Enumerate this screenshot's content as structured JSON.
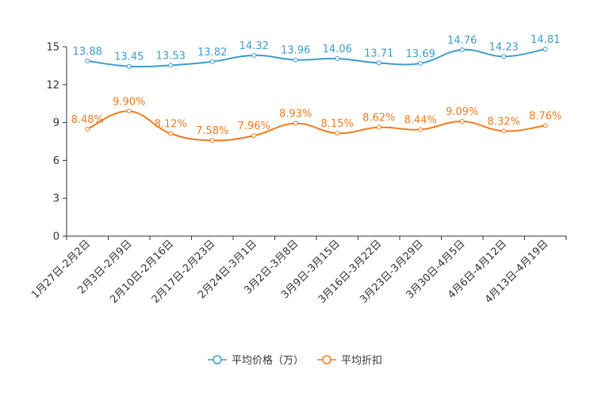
{
  "chart_data": {
    "type": "line",
    "title": "",
    "xlabel": "",
    "ylabel": "",
    "ylim": [
      0,
      15
    ],
    "yticks": [
      0,
      3,
      6,
      9,
      12,
      15
    ],
    "categories": [
      "1月27日-2月2日",
      "2月3日-2月9日",
      "2月10日-2月16日",
      "2月17日-2月23日",
      "2月24日-3月1日",
      "3月2日-3月8日",
      "3月9日-3月15日",
      "3月16日-3月22日",
      "3月23日-3月29日",
      "3月30日-4月5日",
      "4月6日-4月12日",
      "4月13日-4月19日"
    ],
    "series": [
      {
        "name": "平均价格（万）",
        "color": "#3d9ccb",
        "values": [
          13.88,
          13.45,
          13.53,
          13.82,
          14.32,
          13.96,
          14.06,
          13.71,
          13.69,
          14.76,
          14.23,
          14.81
        ],
        "labels": [
          "13.88",
          "13.45",
          "13.53",
          "13.82",
          "14.32",
          "13.96",
          "14.06",
          "13.71",
          "13.69",
          "14.76",
          "14.23",
          "14.81"
        ]
      },
      {
        "name": "平均折扣",
        "color": "#f07b1f",
        "values": [
          8.48,
          9.9,
          8.12,
          7.58,
          7.96,
          8.93,
          8.15,
          8.62,
          8.44,
          9.09,
          8.32,
          8.76
        ],
        "labels": [
          "8.48%",
          "9.90%",
          "8.12%",
          "7.58%",
          "7.96%",
          "8.93%",
          "8.15%",
          "8.62%",
          "8.44%",
          "9.09%",
          "8.32%",
          "8.76%"
        ]
      }
    ],
    "legend": {
      "position": "bottom"
    }
  }
}
